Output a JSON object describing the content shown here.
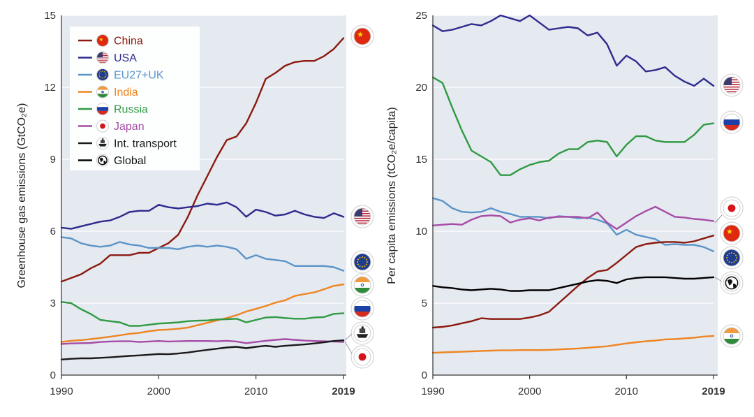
{
  "charts": {
    "left": {
      "type": "line",
      "ylabel": "Greenhouse gas emissions (GtCO₂e)",
      "ylim": [
        0,
        15
      ],
      "yticks": [
        0,
        3,
        6,
        9,
        12,
        15
      ],
      "xlim": [
        1990,
        2019
      ],
      "xticks": [
        "1990",
        "2000",
        "2010",
        "2019"
      ],
      "legend": [
        {
          "name": "China",
          "color": "#8B1A10",
          "icon": "china-flag-icon"
        },
        {
          "name": "USA",
          "color": "#2E2B8F",
          "icon": "usa-flag-icon"
        },
        {
          "name": "EU27+UK",
          "color": "#5B94C8",
          "icon": "eu-flag-icon"
        },
        {
          "name": "India",
          "color": "#EE8521",
          "icon": "india-flag-icon"
        },
        {
          "name": "Russia",
          "color": "#2F9A42",
          "icon": "russia-flag-icon"
        },
        {
          "name": "Japan",
          "color": "#A64CA6",
          "icon": "japan-flag-icon"
        },
        {
          "name": "Int. transport",
          "color": "#1A1A1A",
          "icon": "ship-icon"
        },
        {
          "name": "Global",
          "color": "#000000",
          "icon": "globe-icon"
        }
      ],
      "end_icons": [
        "china-flag-icon",
        "usa-flag-icon",
        "eu-flag-icon",
        "india-flag-icon",
        "russia-flag-icon",
        "ship-icon",
        "japan-flag-icon"
      ]
    },
    "right": {
      "type": "line",
      "ylabel": "Per capita emissions (tCO₂e/capita)",
      "ylim": [
        0,
        25
      ],
      "yticks": [
        0,
        5,
        10,
        15,
        20,
        25
      ],
      "xlim": [
        1990,
        2019
      ],
      "xticks": [
        "1990",
        "2000",
        "2010",
        "2019"
      ],
      "end_icons": [
        "usa-flag-icon",
        "russia-flag-icon",
        "japan-flag-icon",
        "china-flag-icon",
        "eu-flag-icon",
        "globe-icon",
        "india-flag-icon"
      ]
    }
  },
  "chart_data": [
    {
      "type": "line",
      "title": "",
      "xlabel": "",
      "ylabel": "Greenhouse gas emissions (GtCO₂e)",
      "ylim": [
        0,
        15
      ],
      "x": [
        1990,
        1991,
        1992,
        1993,
        1994,
        1995,
        1996,
        1997,
        1998,
        1999,
        2000,
        2001,
        2002,
        2003,
        2004,
        2005,
        2006,
        2007,
        2008,
        2009,
        2010,
        2011,
        2012,
        2013,
        2014,
        2015,
        2016,
        2017,
        2018,
        2019
      ],
      "series": [
        {
          "name": "China",
          "values": [
            3.9,
            4.05,
            4.2,
            4.45,
            4.65,
            5.0,
            5.0,
            5.0,
            5.1,
            5.1,
            5.3,
            5.5,
            5.85,
            6.6,
            7.5,
            8.3,
            9.1,
            9.8,
            9.95,
            10.5,
            11.35,
            12.35,
            12.6,
            12.9,
            13.05,
            13.1,
            13.1,
            13.3,
            13.6,
            14.05
          ]
        },
        {
          "name": "USA",
          "values": [
            6.15,
            6.1,
            6.2,
            6.3,
            6.4,
            6.45,
            6.6,
            6.8,
            6.85,
            6.85,
            7.1,
            7.0,
            6.95,
            7.0,
            7.05,
            7.15,
            7.1,
            7.2,
            7.0,
            6.6,
            6.9,
            6.8,
            6.65,
            6.7,
            6.85,
            6.7,
            6.6,
            6.55,
            6.75,
            6.6
          ]
        },
        {
          "name": "EU27+UK",
          "values": [
            5.75,
            5.7,
            5.5,
            5.4,
            5.35,
            5.4,
            5.55,
            5.45,
            5.4,
            5.3,
            5.3,
            5.3,
            5.25,
            5.35,
            5.4,
            5.35,
            5.4,
            5.35,
            5.25,
            4.85,
            5.0,
            4.85,
            4.8,
            4.75,
            4.55,
            4.55,
            4.55,
            4.55,
            4.5,
            4.35
          ]
        },
        {
          "name": "India",
          "values": [
            1.38,
            1.43,
            1.46,
            1.5,
            1.55,
            1.6,
            1.66,
            1.72,
            1.76,
            1.83,
            1.88,
            1.9,
            1.93,
            1.98,
            2.08,
            2.18,
            2.28,
            2.38,
            2.5,
            2.65,
            2.76,
            2.88,
            3.02,
            3.12,
            3.3,
            3.38,
            3.45,
            3.58,
            3.72,
            3.78
          ]
        },
        {
          "name": "Russia",
          "values": [
            3.05,
            3.0,
            2.75,
            2.55,
            2.3,
            2.25,
            2.2,
            2.05,
            2.05,
            2.1,
            2.15,
            2.17,
            2.2,
            2.25,
            2.27,
            2.28,
            2.32,
            2.33,
            2.35,
            2.2,
            2.3,
            2.4,
            2.42,
            2.38,
            2.35,
            2.35,
            2.4,
            2.42,
            2.55,
            2.58
          ]
        },
        {
          "name": "Japan",
          "values": [
            1.3,
            1.32,
            1.33,
            1.34,
            1.38,
            1.4,
            1.41,
            1.41,
            1.38,
            1.4,
            1.42,
            1.4,
            1.41,
            1.42,
            1.42,
            1.42,
            1.41,
            1.43,
            1.4,
            1.33,
            1.38,
            1.43,
            1.47,
            1.5,
            1.47,
            1.44,
            1.42,
            1.41,
            1.4,
            1.38
          ]
        },
        {
          "name": "Int. transport",
          "values": [
            0.65,
            0.68,
            0.7,
            0.7,
            0.72,
            0.74,
            0.77,
            0.8,
            0.82,
            0.85,
            0.88,
            0.87,
            0.9,
            0.94,
            1.0,
            1.05,
            1.1,
            1.15,
            1.18,
            1.12,
            1.18,
            1.22,
            1.18,
            1.22,
            1.25,
            1.28,
            1.32,
            1.37,
            1.42,
            1.45
          ]
        }
      ]
    },
    {
      "type": "line",
      "title": "",
      "xlabel": "",
      "ylabel": "Per capita emissions (tCO₂e/capita)",
      "ylim": [
        0,
        25
      ],
      "x": [
        1990,
        1991,
        1992,
        1993,
        1994,
        1995,
        1996,
        1997,
        1998,
        1999,
        2000,
        2001,
        2002,
        2003,
        2004,
        2005,
        2006,
        2007,
        2008,
        2009,
        2010,
        2011,
        2012,
        2013,
        2014,
        2015,
        2016,
        2017,
        2018,
        2019
      ],
      "series": [
        {
          "name": "USA",
          "values": [
            24.3,
            23.9,
            24.0,
            24.2,
            24.4,
            24.3,
            24.6,
            25.0,
            24.8,
            24.6,
            25.0,
            24.5,
            24.0,
            24.1,
            24.2,
            24.1,
            23.6,
            23.8,
            23.0,
            21.5,
            22.2,
            21.8,
            21.1,
            21.2,
            21.4,
            20.8,
            20.4,
            20.1,
            20.6,
            20.1
          ]
        },
        {
          "name": "Russia",
          "values": [
            20.7,
            20.3,
            18.6,
            17.0,
            15.6,
            15.2,
            14.8,
            13.9,
            13.9,
            14.3,
            14.6,
            14.8,
            14.9,
            15.4,
            15.7,
            15.7,
            16.2,
            16.3,
            16.2,
            15.2,
            16.0,
            16.6,
            16.6,
            16.3,
            16.2,
            16.2,
            16.2,
            16.7,
            17.4,
            17.5
          ]
        },
        {
          "name": "EU27+UK",
          "values": [
            12.3,
            12.1,
            11.6,
            11.35,
            11.3,
            11.35,
            11.6,
            11.35,
            11.2,
            11.0,
            11.0,
            11.0,
            10.9,
            11.05,
            11.0,
            10.9,
            10.95,
            10.8,
            10.55,
            9.75,
            10.1,
            9.75,
            9.6,
            9.45,
            9.05,
            9.1,
            9.05,
            9.05,
            8.9,
            8.6
          ]
        },
        {
          "name": "Japan",
          "values": [
            10.4,
            10.45,
            10.5,
            10.45,
            10.8,
            11.05,
            11.1,
            11.05,
            10.6,
            10.8,
            10.9,
            10.75,
            10.95,
            11.0,
            11.0,
            11.0,
            10.9,
            11.3,
            10.6,
            10.15,
            10.6,
            11.05,
            11.4,
            11.7,
            11.35,
            11.0,
            10.95,
            10.85,
            10.8,
            10.7
          ]
        },
        {
          "name": "China",
          "values": [
            3.3,
            3.35,
            3.45,
            3.6,
            3.75,
            3.95,
            3.9,
            3.9,
            3.9,
            3.9,
            4.0,
            4.15,
            4.4,
            5.0,
            5.6,
            6.2,
            6.75,
            7.2,
            7.3,
            7.8,
            8.35,
            8.9,
            9.1,
            9.2,
            9.25,
            9.25,
            9.2,
            9.3,
            9.5,
            9.7
          ]
        },
        {
          "name": "Global",
          "values": [
            6.2,
            6.1,
            6.05,
            5.95,
            5.9,
            5.95,
            6.0,
            5.95,
            5.85,
            5.85,
            5.9,
            5.9,
            5.9,
            6.05,
            6.2,
            6.35,
            6.5,
            6.6,
            6.55,
            6.4,
            6.65,
            6.75,
            6.8,
            6.8,
            6.8,
            6.75,
            6.7,
            6.7,
            6.75,
            6.8
          ]
        },
        {
          "name": "India",
          "values": [
            1.55,
            1.58,
            1.6,
            1.62,
            1.65,
            1.68,
            1.7,
            1.72,
            1.72,
            1.74,
            1.74,
            1.74,
            1.75,
            1.78,
            1.82,
            1.85,
            1.9,
            1.95,
            2.0,
            2.1,
            2.2,
            2.28,
            2.35,
            2.4,
            2.48,
            2.5,
            2.55,
            2.6,
            2.68,
            2.72
          ]
        }
      ]
    }
  ]
}
